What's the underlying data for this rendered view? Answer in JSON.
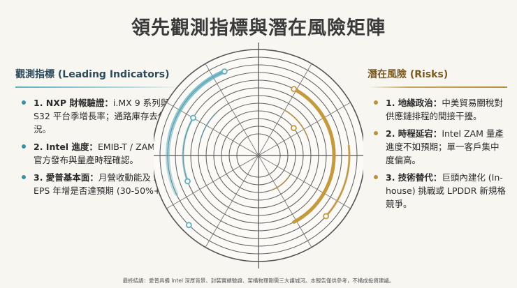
{
  "title": "領先觀測指標與潛在風險矩陣",
  "left_panel": {
    "title": "觀測指標 (Leading Indicators)",
    "items": [
      {
        "num": "1. NXP 財報驗證：",
        "text": "i.MX 9 系列與 S32 平台季增長率；通路庫存去化狀況。"
      },
      {
        "num": "2. Intel 進度：",
        "text": "EMIB-T / ZAM 專案官方發布與量產時程確認。"
      },
      {
        "num": "3. 愛普基本面：",
        "text": "月營收動能及 2026 EPS 年增是否達預期 (30-50%+)。"
      }
    ]
  },
  "right_panel": {
    "title": "潛在風險 (Risks)",
    "items": [
      {
        "num": "1. 地緣政治：",
        "text": "中美貿易關稅對供應鏈排程的間接干擾。"
      },
      {
        "num": "2. 時程延宕：",
        "text": "Intel ZAM 量產進度不如預期；單一客戶集中度偏高。"
      },
      {
        "num": "3. 技術替代：",
        "text": "巨頭內建化 (In-house) 挑戰或 LPDDR 新規格競爭。"
      }
    ]
  },
  "footer": "最終結語：愛普具備 Intel 深厚背景、封裝實績驗證、架構物理剛需三大護城河。本報告僅供參考，不構成投資建議。",
  "colors": {
    "teal": "#5fb0c2",
    "gold": "#c49a3e",
    "ink": "#2b2b2b"
  }
}
